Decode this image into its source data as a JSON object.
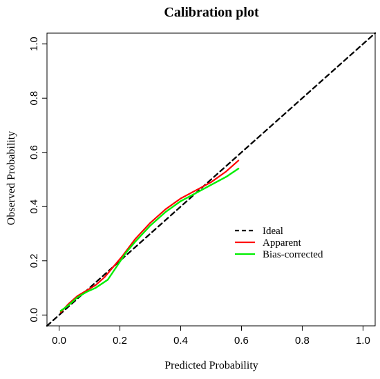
{
  "chart_data": {
    "type": "line",
    "title": "Calibration plot",
    "xlabel": "Predicted Probability",
    "ylabel": "Observed Probability",
    "xlim": [
      -0.04,
      1.04
    ],
    "ylim": [
      -0.04,
      1.04
    ],
    "x_ticks": [
      0.0,
      0.2,
      0.4,
      0.6,
      0.8,
      1.0
    ],
    "x_tick_labels": [
      "0.0",
      "0.2",
      "0.4",
      "0.6",
      "0.8",
      "1.0"
    ],
    "y_ticks": [
      0.0,
      0.2,
      0.4,
      0.6,
      0.8,
      1.0
    ],
    "y_tick_labels": [
      "0.0",
      "0.2",
      "0.4",
      "0.6",
      "0.8",
      "1.0"
    ],
    "grid": false,
    "legend_position": "center-right",
    "series": [
      {
        "name": "Ideal",
        "color": "#000000",
        "line_style": "dashed",
        "x": [
          -0.04,
          1.04
        ],
        "y": [
          -0.04,
          1.04
        ]
      },
      {
        "name": "Apparent",
        "color": "#ff0000",
        "line_style": "solid",
        "x": [
          0.005,
          0.03,
          0.06,
          0.09,
          0.12,
          0.15,
          0.18,
          0.21,
          0.25,
          0.3,
          0.35,
          0.4,
          0.45,
          0.5,
          0.55,
          0.59
        ],
        "y": [
          0.01,
          0.04,
          0.07,
          0.09,
          0.11,
          0.14,
          0.18,
          0.22,
          0.28,
          0.34,
          0.39,
          0.43,
          0.46,
          0.49,
          0.53,
          0.57
        ]
      },
      {
        "name": "Bias-corrected",
        "color": "#00ee00",
        "line_style": "solid",
        "x": [
          0.005,
          0.03,
          0.06,
          0.09,
          0.12,
          0.16,
          0.19,
          0.22,
          0.25,
          0.3,
          0.35,
          0.4,
          0.45,
          0.5,
          0.55,
          0.59
        ],
        "y": [
          0.015,
          0.035,
          0.065,
          0.085,
          0.1,
          0.13,
          0.18,
          0.23,
          0.27,
          0.33,
          0.38,
          0.42,
          0.45,
          0.48,
          0.51,
          0.54
        ]
      }
    ]
  }
}
